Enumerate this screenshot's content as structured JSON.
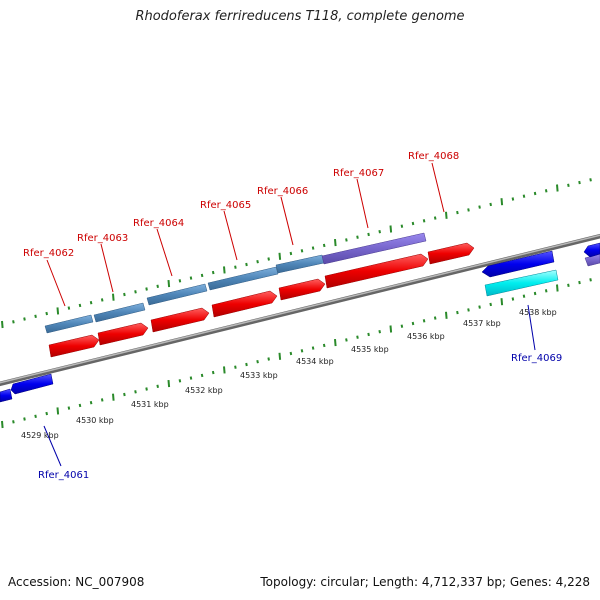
{
  "title": "Rhodoferax ferrireducens T118, complete genome",
  "footer": {
    "accession": "Accession: NC_007908",
    "summary": "Topology: circular; Length: 4,712,337 bp; Genes: 4,228"
  },
  "kbp_labels": [
    "4529 kbp",
    "4530 kbp",
    "4531 kbp",
    "4532 kbp",
    "4533 kbp",
    "4534 kbp",
    "4535 kbp",
    "4536 kbp",
    "4537 kbp",
    "4538 kbp"
  ],
  "gene_labels_forward": [
    "Rfer_4062",
    "Rfer_4063",
    "Rfer_4064",
    "Rfer_4065",
    "Rfer_4066",
    "Rfer_4067",
    "Rfer_4068"
  ],
  "gene_labels_reverse": [
    "Rfer_4061",
    "Rfer_4069"
  ],
  "colors": {
    "forward_gene": "#ee0000",
    "forward_cds_blue": "#4f86b8",
    "forward_cds_purple": "#7766cc",
    "reverse_gene": "#0000ee",
    "reverse_cds_cyan": "#00eeee",
    "tick": "#2a8a2a",
    "backbone": "#888888",
    "label_forward": "#cc0000",
    "label_reverse": "#0000aa"
  }
}
